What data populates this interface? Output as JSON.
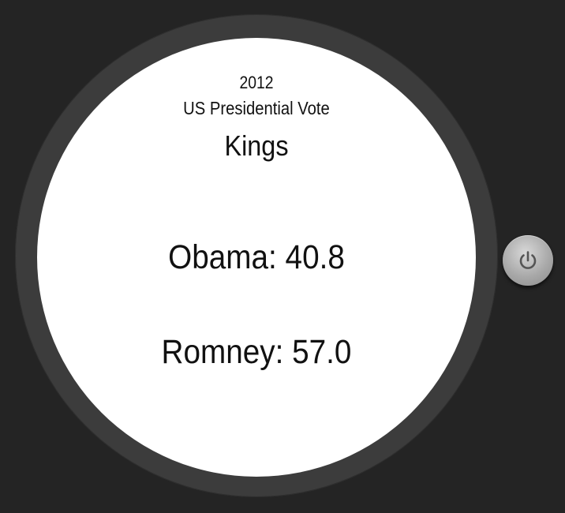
{
  "watch": {
    "year": "2012",
    "subtitle": "US Presidential Vote",
    "county": "Kings",
    "results": [
      {
        "label": "Obama: 40.8"
      },
      {
        "label": "Romney: 57.0"
      }
    ]
  },
  "controls": {
    "power_icon": "power-icon"
  }
}
